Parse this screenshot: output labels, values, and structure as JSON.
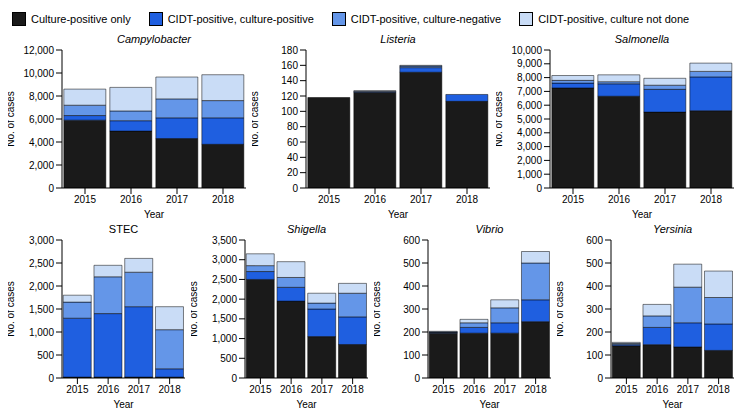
{
  "chart_data": [
    {
      "type": "bar",
      "stacked": true,
      "title": "Campylobacter",
      "xlabel": "Year",
      "ylabel": "No. of cases",
      "categories": [
        "2015",
        "2016",
        "2017",
        "2018"
      ],
      "ylim": [
        0,
        12000
      ],
      "yticks": [
        0,
        {
          "value": 2000,
          "label": "2,000"
        },
        {
          "value": 4000,
          "label": "4,000"
        },
        {
          "value": 6000,
          "label": "6,000"
        },
        {
          "value": 8000,
          "label": "8,000"
        },
        {
          "value": 10000,
          "label": "10,000"
        },
        {
          "value": 12000,
          "label": "12,000"
        }
      ],
      "series": [
        {
          "name": "Culture-positive only",
          "color": "#1a1a1a",
          "values": [
            5900,
            4950,
            4300,
            3800
          ]
        },
        {
          "name": "CIDT-positive, culture-positive",
          "color": "#1f5fe0",
          "values": [
            400,
            900,
            1800,
            2300
          ]
        },
        {
          "name": "CIDT-positive, culture-negative",
          "color": "#6496e8",
          "values": [
            900,
            850,
            1650,
            1500
          ]
        },
        {
          "name": "CIDT-positive, culture not done",
          "color": "#c9dcf6",
          "values": [
            1400,
            2050,
            1900,
            2250
          ]
        }
      ]
    },
    {
      "type": "bar",
      "stacked": true,
      "title": "Listeria",
      "xlabel": "Year",
      "ylabel": "No. of cases",
      "categories": [
        "2015",
        "2016",
        "2017",
        "2018"
      ],
      "ylim": [
        0,
        180
      ],
      "yticks": [
        0,
        20,
        40,
        60,
        80,
        100,
        120,
        140,
        160,
        180
      ],
      "series": [
        {
          "name": "Culture-positive only",
          "color": "#1a1a1a",
          "values": [
            118,
            125,
            151,
            113
          ]
        },
        {
          "name": "CIDT-positive, culture-positive",
          "color": "#1f5fe0",
          "values": [
            0,
            1,
            6,
            9
          ]
        },
        {
          "name": "CIDT-positive, culture-negative",
          "color": "#6496e8",
          "values": [
            0,
            0,
            2,
            0
          ]
        },
        {
          "name": "CIDT-positive, culture not done",
          "color": "#c9dcf6",
          "values": [
            0,
            1,
            1,
            0
          ]
        }
      ]
    },
    {
      "type": "bar",
      "stacked": true,
      "title": "Salmonella",
      "xlabel": "Year",
      "ylabel": "No. of cases",
      "categories": [
        "2015",
        "2016",
        "2017",
        "2018"
      ],
      "ylim": [
        0,
        10000
      ],
      "yticks": [
        0,
        {
          "value": 1000,
          "label": "1,000"
        },
        {
          "value": 2000,
          "label": "2,000"
        },
        {
          "value": 3000,
          "label": "3,000"
        },
        {
          "value": 4000,
          "label": "4,000"
        },
        {
          "value": 5000,
          "label": "5,000"
        },
        {
          "value": 6000,
          "label": "6,000"
        },
        {
          "value": 7000,
          "label": "7,000"
        },
        {
          "value": 8000,
          "label": "8,000"
        },
        {
          "value": 9000,
          "label": "9,000"
        },
        {
          "value": 10000,
          "label": "10,000"
        }
      ],
      "series": [
        {
          "name": "Culture-positive only",
          "color": "#1a1a1a",
          "values": [
            7250,
            6650,
            5500,
            5600
          ]
        },
        {
          "name": "CIDT-positive, culture-positive",
          "color": "#1f5fe0",
          "values": [
            350,
            900,
            1650,
            2450
          ]
        },
        {
          "name": "CIDT-positive, culture-negative",
          "color": "#6496e8",
          "values": [
            200,
            150,
            300,
            400
          ]
        },
        {
          "name": "CIDT-positive, culture not done",
          "color": "#c9dcf6",
          "values": [
            350,
            500,
            500,
            600
          ]
        }
      ]
    },
    {
      "type": "bar",
      "stacked": true,
      "title": "STEC",
      "xlabel": "Year",
      "ylabel": "No. of cases",
      "categories": [
        "2015",
        "2016",
        "2017",
        "2018"
      ],
      "ylim": [
        0,
        3000
      ],
      "yticks": [
        0,
        500,
        {
          "value": 1000,
          "label": "1,000"
        },
        {
          "value": 1500,
          "label": "1,500"
        },
        {
          "value": 2000,
          "label": "2,000"
        },
        {
          "value": 2500,
          "label": "2,500"
        },
        {
          "value": 3000,
          "label": "3,000"
        }
      ],
      "series": [
        {
          "name": "Culture-positive only",
          "color": "#1a1a1a",
          "values": [
            20,
            20,
            20,
            20
          ]
        },
        {
          "name": "CIDT-positive, culture-positive",
          "color": "#1f5fe0",
          "values": [
            1280,
            1380,
            1530,
            180
          ]
        },
        {
          "name": "CIDT-positive, culture-negative",
          "color": "#6496e8",
          "values": [
            350,
            800,
            750,
            850
          ]
        },
        {
          "name": "CIDT-positive, culture not done",
          "color": "#c9dcf6",
          "values": [
            150,
            250,
            300,
            500
          ]
        }
      ]
    },
    {
      "type": "bar",
      "stacked": true,
      "title": "Shigella",
      "xlabel": "Year",
      "ylabel": "No. of cases",
      "categories": [
        "2015",
        "2016",
        "2017",
        "2018"
      ],
      "ylim": [
        0,
        3500
      ],
      "yticks": [
        0,
        500,
        {
          "value": 1000,
          "label": "1,000"
        },
        {
          "value": 1500,
          "label": "1,500"
        },
        {
          "value": 2000,
          "label": "2,000"
        },
        {
          "value": 2500,
          "label": "2,500"
        },
        {
          "value": 3000,
          "label": "3,000"
        },
        {
          "value": 3500,
          "label": "3,500"
        }
      ],
      "series": [
        {
          "name": "Culture-positive only",
          "color": "#1a1a1a",
          "values": [
            2500,
            1950,
            1050,
            850
          ]
        },
        {
          "name": "CIDT-positive, culture-positive",
          "color": "#1f5fe0",
          "values": [
            200,
            350,
            700,
            700
          ]
        },
        {
          "name": "CIDT-positive, culture-negative",
          "color": "#6496e8",
          "values": [
            150,
            250,
            150,
            600
          ]
        },
        {
          "name": "CIDT-positive, culture not done",
          "color": "#c9dcf6",
          "values": [
            300,
            400,
            250,
            250
          ]
        }
      ]
    },
    {
      "type": "bar",
      "stacked": true,
      "title": "Vibrio",
      "xlabel": "Year",
      "ylabel": "No. of cases",
      "categories": [
        "2015",
        "2016",
        "2017",
        "2018"
      ],
      "ylim": [
        0,
        600
      ],
      "yticks": [
        0,
        100,
        200,
        300,
        400,
        500,
        600
      ],
      "series": [
        {
          "name": "Culture-positive only",
          "color": "#1a1a1a",
          "values": [
            195,
            195,
            195,
            245
          ]
        },
        {
          "name": "CIDT-positive, culture-positive",
          "color": "#1f5fe0",
          "values": [
            3,
            25,
            45,
            95
          ]
        },
        {
          "name": "CIDT-positive, culture-negative",
          "color": "#6496e8",
          "values": [
            2,
            20,
            65,
            160
          ]
        },
        {
          "name": "CIDT-positive, culture not done",
          "color": "#c9dcf6",
          "values": [
            3,
            15,
            35,
            50
          ]
        }
      ]
    },
    {
      "type": "bar",
      "stacked": true,
      "title": "Yersinia",
      "xlabel": "Year",
      "ylabel": "No. of cases",
      "categories": [
        "2015",
        "2016",
        "2017",
        "2018"
      ],
      "ylim": [
        0,
        600
      ],
      "yticks": [
        0,
        100,
        200,
        300,
        400,
        500,
        600
      ],
      "series": [
        {
          "name": "Culture-positive only",
          "color": "#1a1a1a",
          "values": [
            140,
            145,
            135,
            120
          ]
        },
        {
          "name": "CIDT-positive, culture-positive",
          "color": "#1f5fe0",
          "values": [
            5,
            75,
            105,
            115
          ]
        },
        {
          "name": "CIDT-positive, culture-negative",
          "color": "#6496e8",
          "values": [
            5,
            50,
            155,
            115
          ]
        },
        {
          "name": "CIDT-positive, culture not done",
          "color": "#c9dcf6",
          "values": [
            5,
            50,
            100,
            115
          ]
        }
      ]
    }
  ]
}
